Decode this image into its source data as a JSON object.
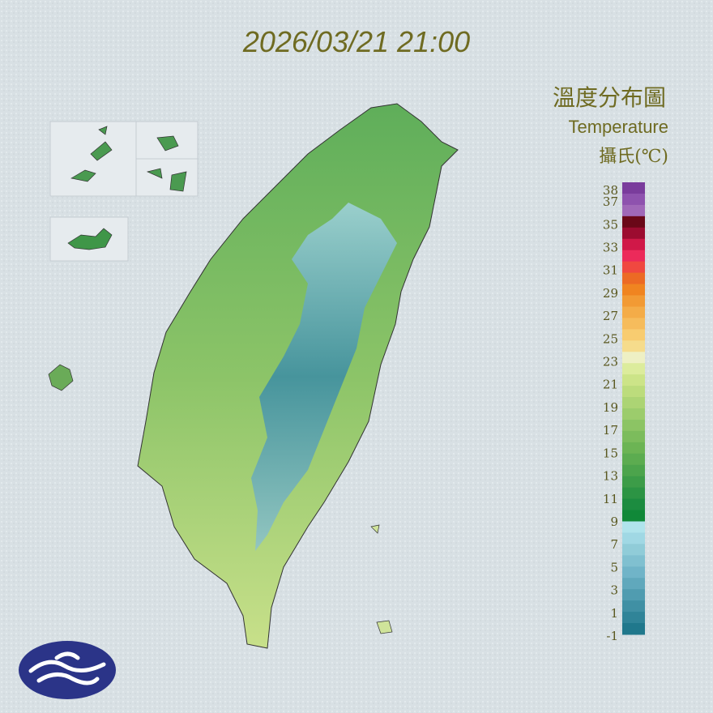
{
  "header": {
    "timestamp": "2026/03/21 21:00"
  },
  "legend": {
    "title": "溫度分布圖",
    "subtitle": "Temperature",
    "unit": "攝氏(℃)",
    "labels": [
      "38",
      "37",
      "35",
      "33",
      "31",
      "29",
      "27",
      "25",
      "23",
      "21",
      "19",
      "17",
      "15",
      "13",
      "11",
      "9",
      "7",
      "5",
      "3",
      "1",
      "-1"
    ],
    "colors": [
      "#7a3c9c",
      "#8e52ae",
      "#a068b8",
      "#6a0818",
      "#9c0c30",
      "#d01848",
      "#ec2a5a",
      "#f04840",
      "#ec6a24",
      "#f08420",
      "#f29a34",
      "#f4ac48",
      "#f6bc5c",
      "#f8cc70",
      "#f6dc8c",
      "#eef0c4",
      "#dcec9c",
      "#cce488",
      "#bcdc7c",
      "#acd474",
      "#9ccc6c",
      "#8cc464",
      "#7cbc5c",
      "#6cb454",
      "#5cac50",
      "#4ca44c",
      "#3c9c48",
      "#2c9444",
      "#1c8c40",
      "#108838",
      "#b0e4ec",
      "#a0d8e4",
      "#90ccd8",
      "#80c0d0",
      "#70b4c8",
      "#60a8bc",
      "#509cb0",
      "#4090a4",
      "#308498",
      "#20788c"
    ]
  }
}
